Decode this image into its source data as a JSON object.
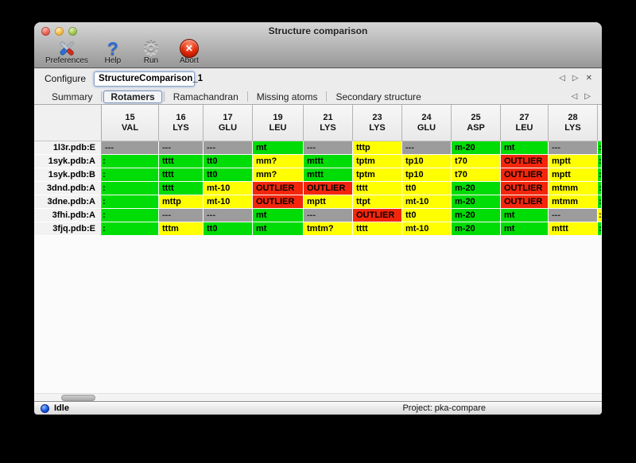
{
  "window": {
    "title": "Structure comparison",
    "controls": [
      "close",
      "minimize",
      "zoom"
    ]
  },
  "toolbar": {
    "buttons": [
      {
        "label": "Preferences",
        "icon": "crossed-tools"
      },
      {
        "label": "Help",
        "icon": "question-mark"
      },
      {
        "label": "Run",
        "icon": "gear"
      },
      {
        "label": "Abort",
        "icon": "red-x-badge"
      }
    ]
  },
  "configure": {
    "label": "Configure",
    "value": "StructureComparison_1",
    "nav_icons": [
      "back-arrow",
      "forward-arrow",
      "close-x"
    ]
  },
  "tabs": {
    "items": [
      "Summary",
      "Rotamers",
      "Ramachandran",
      "Missing atoms",
      "Secondary structure"
    ],
    "active": "Rotamers",
    "nav_icons": [
      "back-arrow",
      "forward-arrow"
    ]
  },
  "glyphs": {
    "back": "◁",
    "forward": "▷",
    "close": "✕",
    "gear": "⚙",
    "question": "?",
    "abort_x": "✕"
  },
  "colors": {
    "green": "#00dc05",
    "yellow": "#ffff00",
    "red": "#f3260c",
    "gray": "#9c9c9c"
  },
  "table": {
    "columns": [
      {
        "num": "15",
        "res": "VAL"
      },
      {
        "num": "16",
        "res": "LYS"
      },
      {
        "num": "17",
        "res": "GLU"
      },
      {
        "num": "19",
        "res": "LEU"
      },
      {
        "num": "21",
        "res": "LYS"
      },
      {
        "num": "23",
        "res": "LYS"
      },
      {
        "num": "24",
        "res": "GLU"
      },
      {
        "num": "25",
        "res": "ASP"
      },
      {
        "num": "27",
        "res": "LEU"
      },
      {
        "num": "28",
        "res": "LYS"
      }
    ],
    "rows": [
      {
        "label": "1l3r.pdb:E",
        "cells": [
          {
            "t": "---",
            "c": "gray"
          },
          {
            "t": "---",
            "c": "gray"
          },
          {
            "t": "---",
            "c": "gray"
          },
          {
            "t": "mt",
            "c": "green"
          },
          {
            "t": "---",
            "c": "gray"
          },
          {
            "t": "tttp",
            "c": "yellow"
          },
          {
            "t": "---",
            "c": "gray"
          },
          {
            "t": "m-20",
            "c": "green"
          },
          {
            "t": "mt",
            "c": "green"
          },
          {
            "t": "---",
            "c": "gray"
          }
        ],
        "next_col_sliver": "green"
      },
      {
        "label": "1syk.pdb:A",
        "cells": [
          {
            "t": ":",
            "c": "green",
            "clip": true
          },
          {
            "t": "tttt",
            "c": "green"
          },
          {
            "t": "tt0",
            "c": "green"
          },
          {
            "t": "mm?",
            "c": "yellow"
          },
          {
            "t": "mttt",
            "c": "green"
          },
          {
            "t": "tptm",
            "c": "yellow"
          },
          {
            "t": "tp10",
            "c": "yellow"
          },
          {
            "t": "t70",
            "c": "yellow"
          },
          {
            "t": "OUTLIER",
            "c": "red"
          },
          {
            "t": "mptt",
            "c": "yellow"
          }
        ],
        "next_col_sliver": "green"
      },
      {
        "label": "1syk.pdb:B",
        "cells": [
          {
            "t": ":",
            "c": "green",
            "clip": true
          },
          {
            "t": "tttt",
            "c": "green"
          },
          {
            "t": "tt0",
            "c": "green"
          },
          {
            "t": "mm?",
            "c": "yellow"
          },
          {
            "t": "mttt",
            "c": "green"
          },
          {
            "t": "tptm",
            "c": "yellow"
          },
          {
            "t": "tp10",
            "c": "yellow"
          },
          {
            "t": "t70",
            "c": "yellow"
          },
          {
            "t": "OUTLIER",
            "c": "red"
          },
          {
            "t": "mptt",
            "c": "yellow"
          }
        ],
        "next_col_sliver": "green"
      },
      {
        "label": "3dnd.pdb:A",
        "cells": [
          {
            "t": ":",
            "c": "green",
            "clip": true
          },
          {
            "t": "tttt",
            "c": "green"
          },
          {
            "t": "mt-10",
            "c": "yellow"
          },
          {
            "t": "OUTLIER",
            "c": "red"
          },
          {
            "t": "OUTLIER",
            "c": "red"
          },
          {
            "t": "tttt",
            "c": "yellow"
          },
          {
            "t": "tt0",
            "c": "yellow"
          },
          {
            "t": "m-20",
            "c": "green"
          },
          {
            "t": "OUTLIER",
            "c": "red"
          },
          {
            "t": "mtmm",
            "c": "yellow"
          }
        ],
        "next_col_sliver": "green"
      },
      {
        "label": "3dne.pdb:A",
        "cells": [
          {
            "t": ":",
            "c": "green",
            "clip": true
          },
          {
            "t": "mttp",
            "c": "yellow"
          },
          {
            "t": "mt-10",
            "c": "yellow"
          },
          {
            "t": "OUTLIER",
            "c": "red"
          },
          {
            "t": "mptt",
            "c": "yellow"
          },
          {
            "t": "ttpt",
            "c": "yellow"
          },
          {
            "t": "mt-10",
            "c": "yellow"
          },
          {
            "t": "m-20",
            "c": "green"
          },
          {
            "t": "OUTLIER",
            "c": "red"
          },
          {
            "t": "mtmm",
            "c": "yellow"
          }
        ],
        "next_col_sliver": "green"
      },
      {
        "label": "3fhi.pdb:A",
        "cells": [
          {
            "t": ":",
            "c": "green",
            "clip": true
          },
          {
            "t": "---",
            "c": "gray"
          },
          {
            "t": "---",
            "c": "gray"
          },
          {
            "t": "mt",
            "c": "green"
          },
          {
            "t": "---",
            "c": "gray"
          },
          {
            "t": "OUTLIER",
            "c": "red"
          },
          {
            "t": "tt0",
            "c": "yellow"
          },
          {
            "t": "m-20",
            "c": "green"
          },
          {
            "t": "mt",
            "c": "green"
          },
          {
            "t": "---",
            "c": "gray"
          }
        ],
        "next_col_sliver": "yellow"
      },
      {
        "label": "3fjq.pdb:E",
        "cells": [
          {
            "t": ":",
            "c": "green",
            "clip": true
          },
          {
            "t": "tttm",
            "c": "yellow"
          },
          {
            "t": "tt0",
            "c": "green"
          },
          {
            "t": "mt",
            "c": "green"
          },
          {
            "t": "tmtm?",
            "c": "yellow"
          },
          {
            "t": "tttt",
            "c": "yellow"
          },
          {
            "t": "mt-10",
            "c": "yellow"
          },
          {
            "t": "m-20",
            "c": "green"
          },
          {
            "t": "mt",
            "c": "green"
          },
          {
            "t": "mttt",
            "c": "yellow"
          }
        ],
        "next_col_sliver": "green"
      }
    ]
  },
  "statusbar": {
    "left": "Idle",
    "right": "Project: pka-compare"
  }
}
